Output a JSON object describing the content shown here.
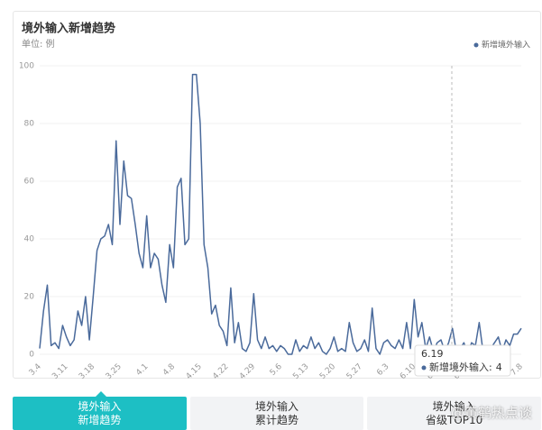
{
  "chart_data": {
    "type": "line",
    "title": "境外输入新增趋势",
    "subtitle": "单位: 例",
    "categories": [
      "3.4",
      null,
      null,
      null,
      null,
      null,
      null,
      "3.11",
      null,
      null,
      null,
      null,
      null,
      null,
      "3.18",
      null,
      null,
      null,
      null,
      null,
      null,
      "3.25",
      null,
      null,
      null,
      null,
      null,
      null,
      "4.1",
      null,
      null,
      null,
      null,
      null,
      null,
      "4.8",
      null,
      null,
      null,
      null,
      null,
      null,
      "4.15",
      null,
      null,
      null,
      null,
      null,
      null,
      "4.22",
      null,
      null,
      null,
      null,
      null,
      null,
      "4.29",
      null,
      null,
      null,
      null,
      null,
      null,
      "5.6",
      null,
      null,
      null,
      null,
      null,
      null,
      "5.13",
      null,
      null,
      null,
      null,
      null,
      null,
      "5.20",
      null,
      null,
      null,
      null,
      null,
      null,
      "5.27",
      null,
      null,
      null,
      null,
      null,
      null,
      "6.3",
      null,
      null,
      null,
      null,
      null,
      null,
      "6.10",
      null,
      null,
      null,
      null,
      null,
      null,
      "6.17",
      null,
      null,
      null,
      null,
      null,
      null,
      "6.24",
      null,
      null,
      null,
      null,
      null,
      null,
      "7.1",
      null,
      null,
      null,
      null,
      null,
      null,
      "7.8"
    ],
    "series": [
      {
        "name": "新增境外输入",
        "color": "#4a6a9b",
        "values": [
          2,
          15,
          24,
          3,
          4,
          2,
          10,
          6,
          3,
          5,
          15,
          10,
          20,
          5,
          20,
          36,
          40,
          41,
          45,
          38,
          74,
          45,
          67,
          55,
          54,
          45,
          35,
          30,
          48,
          30,
          35,
          33,
          24,
          18,
          38,
          30,
          58,
          61,
          38,
          40,
          97,
          97,
          80,
          38,
          30,
          14,
          17,
          10,
          8,
          3,
          23,
          4,
          11,
          2,
          1,
          4,
          21,
          5,
          2,
          6,
          2,
          3,
          1,
          3,
          2,
          0,
          0,
          5,
          1,
          3,
          2,
          6,
          2,
          4,
          1,
          0,
          2,
          6,
          1,
          2,
          1,
          11,
          4,
          1,
          2,
          5,
          1,
          16,
          2,
          0,
          4,
          5,
          3,
          2,
          5,
          2,
          11,
          2,
          19,
          6,
          11,
          2,
          6,
          1,
          4,
          5,
          1,
          4,
          9,
          1,
          2,
          4,
          0,
          4,
          3,
          11,
          1,
          3,
          2,
          4,
          6,
          1,
          5,
          3,
          7,
          7,
          9
        ]
      }
    ],
    "ylim": [
      0,
      100
    ],
    "yticks": [
      0,
      20,
      40,
      60,
      80,
      100
    ],
    "grid": true,
    "legend": "top-right",
    "tooltip": {
      "x": "6.19",
      "label": "新增境外输入:",
      "value": 4
    }
  },
  "tabs": [
    {
      "lines": [
        "境外输入",
        "新增趋势"
      ],
      "active": true
    },
    {
      "lines": [
        "境外输入",
        "累计趋势"
      ],
      "active": false
    },
    {
      "lines": [
        "境外输入",
        "省级TOP10"
      ],
      "active": false
    }
  ],
  "watermark": "@黄鹤热点谈"
}
